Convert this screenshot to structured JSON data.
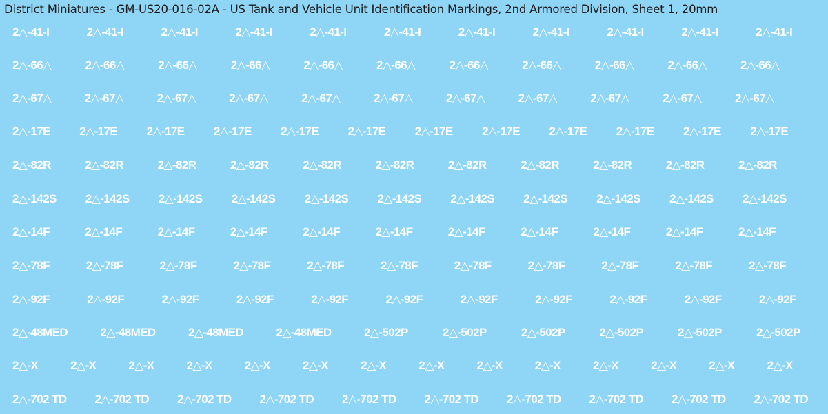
{
  "title": "District Miniatures - GM-US20-016-02A - US Tank and Vehicle Unit Identification Markings, 2nd Armored Division, Sheet 1, 20mm",
  "colors": {
    "background": "#8fd5f5",
    "decal_text": "#ffffff",
    "title_text": "#1a1a1a"
  },
  "rows": [
    {
      "marking": "2△-41-I",
      "count": 11
    },
    {
      "marking": "2△-66△",
      "count": 11
    },
    {
      "marking": "2△-67△",
      "count": 11
    },
    {
      "marking": "2△-17E",
      "count": 12
    },
    {
      "marking": "2△-82R",
      "count": 11
    },
    {
      "marking": "2△-142S",
      "count": 11
    },
    {
      "marking": "2△-14F",
      "count": 11
    },
    {
      "marking": "2△-78F",
      "count": 11
    },
    {
      "marking": "2△-92F",
      "count": 11
    },
    {
      "marking": "2△-48MED",
      "count": 4
    },
    {
      "marking": "2△-502P",
      "count": 6
    },
    {
      "marking": "2△-X",
      "count": 14
    },
    {
      "marking": "2△-702 TD",
      "count": 10
    }
  ]
}
